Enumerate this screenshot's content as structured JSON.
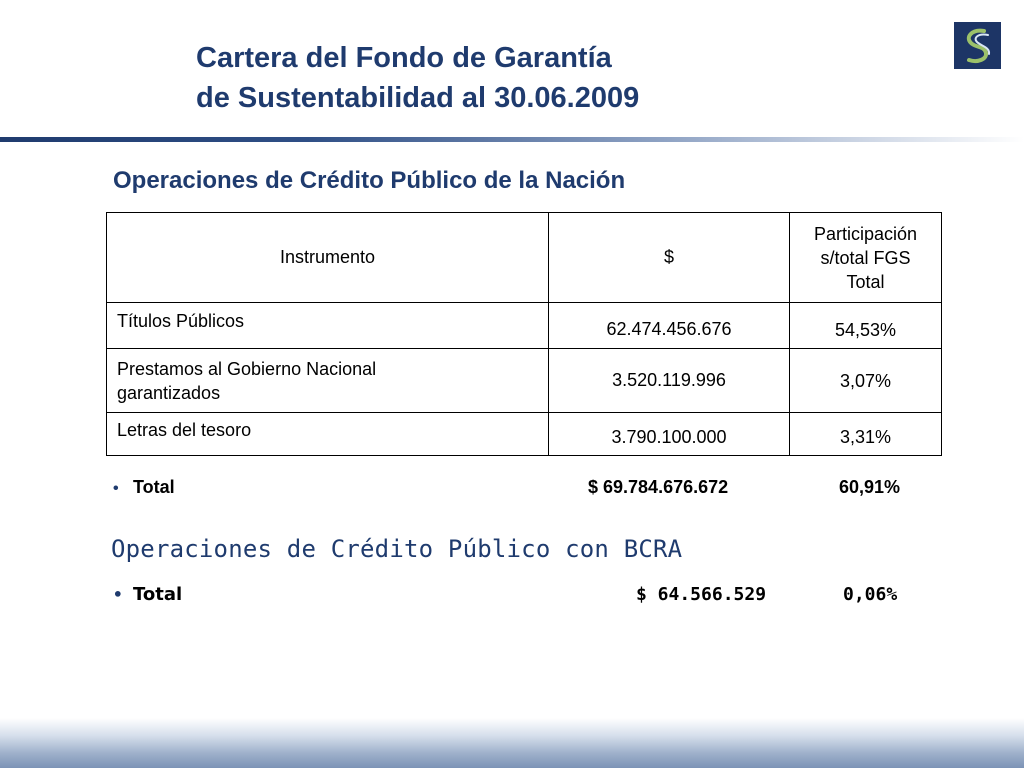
{
  "title": {
    "line1": "Cartera del Fondo de Garantía",
    "line2": "de Sustentabilidad al 30.06.2009"
  },
  "logo": {
    "icon": "s-swirl-logo-icon",
    "background": "#1d3566"
  },
  "colors": {
    "accent": "#1f3b6e",
    "bullet": "#1f3b6e"
  },
  "section1": {
    "title": "Operaciones de Crédito Público de la Nación",
    "table": {
      "headers": {
        "instrument": "Instrumento",
        "amount": "$",
        "share_line1": "Participación",
        "share_line2": "s/total FGS",
        "share_line3": "Total"
      },
      "rows": [
        {
          "instrument": "Títulos Públicos",
          "amount": "62.474.456.676",
          "share": "54,53%"
        },
        {
          "instrument_line1": "Prestamos al Gobierno Nacional",
          "instrument_line2": "garantizados",
          "amount": "3.520.119.996",
          "share": "3,07%"
        },
        {
          "instrument": "Letras del tesoro",
          "amount": "3.790.100.000",
          "share": "3,31%"
        }
      ]
    },
    "total": {
      "bullet": "•",
      "label": "Total",
      "amount": "$ 69.784.676.672",
      "share": "60,91%"
    }
  },
  "section2": {
    "title": "Operaciones de Crédito Público con BCRA",
    "total": {
      "bullet": "•",
      "label": "Total",
      "amount": "$ 64.566.529",
      "share": "0,06%"
    }
  }
}
